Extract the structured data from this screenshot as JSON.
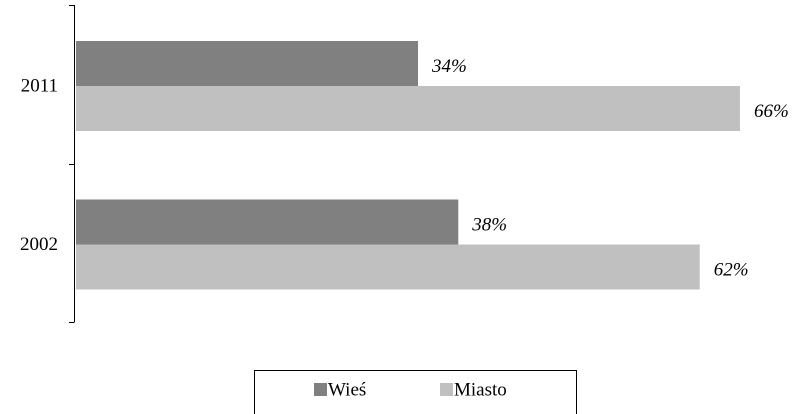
{
  "chart_data": {
    "type": "bar",
    "orientation": "horizontal",
    "categories": [
      "2011",
      "2002"
    ],
    "series": [
      {
        "name": "Wieś",
        "color": "#808080",
        "values": [
          34,
          38
        ],
        "value_labels": [
          "34%",
          "38%"
        ]
      },
      {
        "name": "Miasto",
        "color": "#c0c0c0",
        "values": [
          66,
          62
        ],
        "value_labels": [
          "66%",
          "62%"
        ]
      }
    ],
    "legend": "bottom"
  }
}
